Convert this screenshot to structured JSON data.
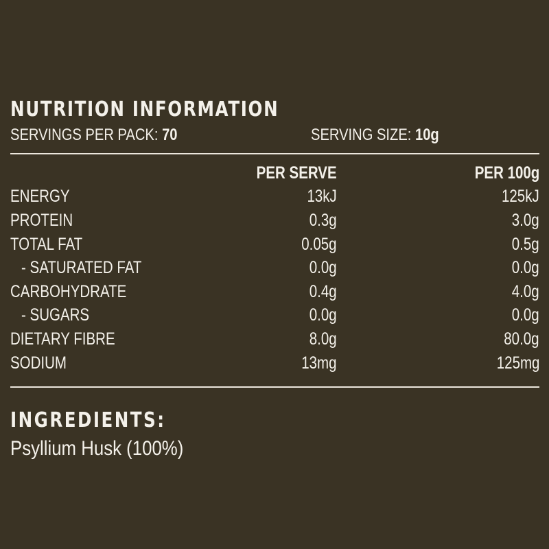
{
  "nutrition": {
    "title": "NUTRITION INFORMATION",
    "servings_per_pack_label": "SERVINGS PER PACK:",
    "servings_per_pack_value": "70",
    "serving_size_label": "SERVING SIZE:",
    "serving_size_value": "10g",
    "columns": [
      "PER SERVE",
      "PER 100g"
    ],
    "rows": [
      {
        "name": "ENERGY",
        "per_serve": "13kJ",
        "per_100g": "125kJ"
      },
      {
        "name": "PROTEIN",
        "per_serve": "0.3g",
        "per_100g": "3.0g"
      },
      {
        "name": "TOTAL FAT",
        "per_serve": "0.05g",
        "per_100g": "0.5g"
      },
      {
        "name": "- SATURATED FAT",
        "per_serve": "0.0g",
        "per_100g": "0.0g"
      },
      {
        "name": "CARBOHYDRATE",
        "per_serve": "0.4g",
        "per_100g": "4.0g"
      },
      {
        "name": "- SUGARS",
        "per_serve": "0.0g",
        "per_100g": "0.0g"
      },
      {
        "name": "DIETARY FIBRE",
        "per_serve": "8.0g",
        "per_100g": "80.0g"
      },
      {
        "name": "SODIUM",
        "per_serve": "13mg",
        "per_100g": "125mg"
      }
    ]
  },
  "ingredients": {
    "title": "INGREDIENTS:",
    "text": "Psyllium Husk (100%)"
  },
  "colors": {
    "background": "#3a3324",
    "text": "#f4f1ea"
  }
}
